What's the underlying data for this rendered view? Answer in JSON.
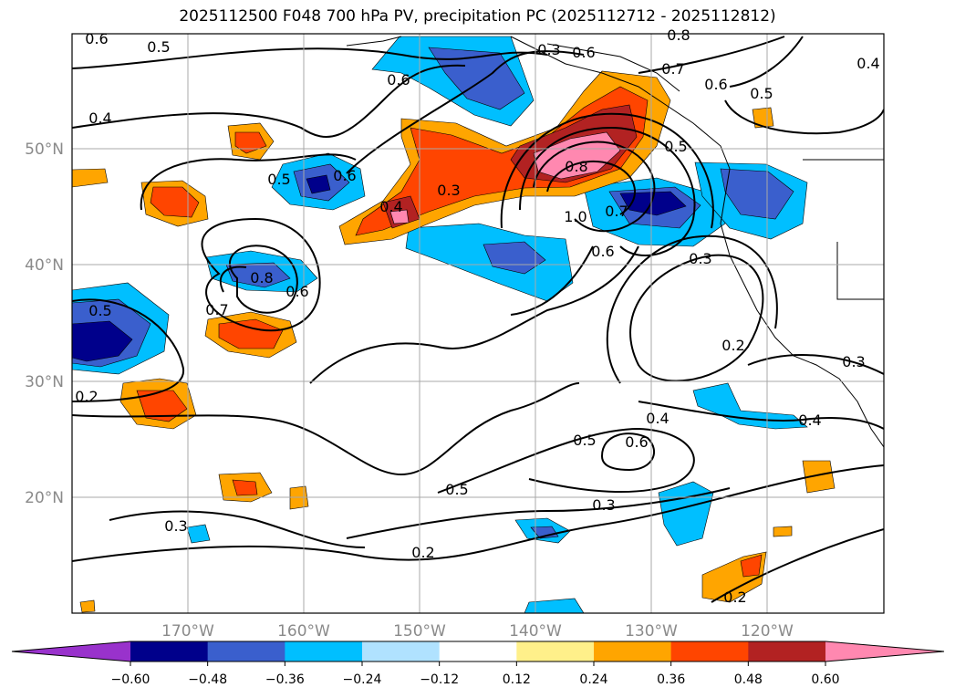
{
  "title": "2025112500 F048 700 hPa PV, precipitation PC (2025112712 - 2025112812)",
  "chart_data": {
    "type": "contour-map",
    "title": "2025112500 F048 700 hPa PV, precipitation PC (2025112712 - 2025112812)",
    "variables": {
      "contours": "700 hPa PV",
      "shading": "precipitation PC"
    },
    "valid_period": "2025112712 - 2025112812",
    "lat_labels": [
      "50°N",
      "40°N",
      "30°N",
      "20°N"
    ],
    "lon_labels": [
      "170°W",
      "160°W",
      "150°W",
      "140°W",
      "130°W",
      "120°W"
    ],
    "extent": {
      "lon": [
        -180,
        -110
      ],
      "lat": [
        10,
        60
      ]
    },
    "contour_labels": [
      "0.6",
      "0.5",
      "0.6",
      "0.4",
      "0.5",
      "0.6",
      "0.8",
      "0.6",
      "0.7",
      "0.4",
      "0.3",
      "0.6",
      "0.7",
      "0.8",
      "0.5",
      "0.6",
      "0.5",
      "0.4",
      "0.3",
      "0.8",
      "1.0",
      "0.7",
      "0.6",
      "0.3",
      "0.2",
      "0.3",
      "0.5",
      "0.2",
      "0.4",
      "0.4",
      "0.5",
      "0.6",
      "0.5",
      "0.3",
      "0.3",
      "0.2",
      "0.2"
    ],
    "colorbar": {
      "levels": [
        -0.6,
        -0.48,
        -0.36,
        -0.24,
        -0.12,
        0.12,
        0.24,
        0.36,
        0.48,
        0.6
      ],
      "tick_labels": [
        "−0.60",
        "−0.48",
        "−0.36",
        "−0.24",
        "−0.12",
        "0.12",
        "0.24",
        "0.36",
        "0.48",
        "0.60"
      ],
      "colors": [
        "#9932cc",
        "#00008b",
        "#3a5fcd",
        "#00bfff",
        "#b0e2ff",
        "#ffffff",
        "#fff08a",
        "#ffa500",
        "#ff4500",
        "#b22222",
        "#ff88b0"
      ],
      "extend": "both"
    }
  }
}
